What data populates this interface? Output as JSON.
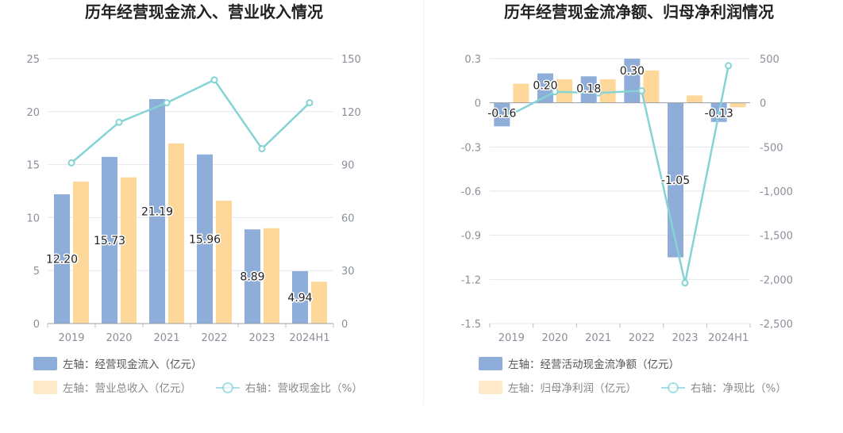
{
  "colors": {
    "bar_primary": "#8eadd8",
    "bar_secondary": "#fdd89a",
    "line": "#86d3d6",
    "axis_text": "#8a8f99",
    "grid": "#e3e6ee",
    "title": "#222222",
    "legend_text": "#555555",
    "legend_text_light": "#888888"
  },
  "chart_data": [
    {
      "type": "bar+line",
      "title": "历年经营现金流入、营业收入情况",
      "categories": [
        "2019",
        "2020",
        "2021",
        "2022",
        "2023",
        "2024H1"
      ],
      "left_axis": {
        "min": 0,
        "max": 25,
        "ticks": [
          0,
          5,
          10,
          15,
          20,
          25
        ],
        "tick_labels": [
          "0",
          "5",
          "10",
          "15",
          "20",
          "25"
        ]
      },
      "right_axis": {
        "min": 0,
        "max": 150,
        "ticks": [
          0,
          30,
          60,
          90,
          120,
          150
        ],
        "tick_labels": [
          "0",
          "30",
          "60",
          "90",
          "120",
          "150"
        ]
      },
      "series": [
        {
          "name": "左轴：经营现金流入（亿元）",
          "kind": "bar",
          "axis": "left",
          "color": "#8eadd8",
          "values": [
            12.2,
            15.73,
            21.19,
            15.96,
            8.89,
            4.94
          ],
          "labels": [
            "12.20",
            "15.73",
            "21.19",
            "15.96",
            "8.89",
            "4.94"
          ]
        },
        {
          "name": "左轴：营业总收入（亿元）",
          "kind": "bar",
          "axis": "left",
          "color": "#fdd89a",
          "values": [
            13.4,
            13.8,
            17.0,
            11.6,
            9.0,
            3.95
          ]
        },
        {
          "name": "右轴：营收现金比（%）",
          "kind": "line",
          "axis": "right",
          "color": "#86d3d6",
          "values": [
            91,
            114,
            125,
            138,
            99,
            125
          ]
        }
      ],
      "legend": [
        "左轴：经营现金流入（亿元）",
        "左轴：营业总收入（亿元）",
        "右轴：营收现金比（%）"
      ]
    },
    {
      "type": "bar+line",
      "title": "历年经营现金流净额、归母净利润情况",
      "categories": [
        "2019",
        "2020",
        "2021",
        "2022",
        "2023",
        "2024H1"
      ],
      "left_axis": {
        "min": -1.5,
        "max": 0.3,
        "ticks": [
          -1.5,
          -1.2,
          -0.9,
          -0.6,
          -0.3,
          0,
          0.3
        ],
        "tick_labels": [
          "-1.5",
          "-1.2",
          "-0.9",
          "-0.6",
          "-0.3",
          "0",
          "0.3"
        ]
      },
      "right_axis": {
        "min": -2500,
        "max": 500,
        "ticks": [
          -2500,
          -2000,
          -1500,
          -1000,
          -500,
          0,
          500
        ],
        "tick_labels": [
          "-2,500",
          "-2,000",
          "-1,500",
          "-1,000",
          "-500",
          "0",
          "500"
        ]
      },
      "series": [
        {
          "name": "左轴：经营活动现金流净额（亿元）",
          "kind": "bar",
          "axis": "left",
          "color": "#8eadd8",
          "values": [
            -0.16,
            0.2,
            0.18,
            0.3,
            -1.05,
            -0.13
          ],
          "labels": [
            "-0.16",
            "0.20",
            "0.18",
            "0.30",
            "-1.05",
            "-0.13"
          ]
        },
        {
          "name": "左轴：归母净利润（亿元）",
          "kind": "bar",
          "axis": "left",
          "color": "#fdd89a",
          "values": [
            0.13,
            0.16,
            0.16,
            0.22,
            0.05,
            -0.03
          ]
        },
        {
          "name": "右轴：净现比（%）",
          "kind": "line",
          "axis": "right",
          "color": "#86d3d6",
          "values": [
            -130,
            125,
            112,
            136,
            -2040,
            420
          ]
        }
      ],
      "legend": [
        "左轴：经营活动现金流净额（亿元）",
        "左轴：归母净利润（亿元）",
        "右轴：净现比（%）"
      ]
    }
  ]
}
